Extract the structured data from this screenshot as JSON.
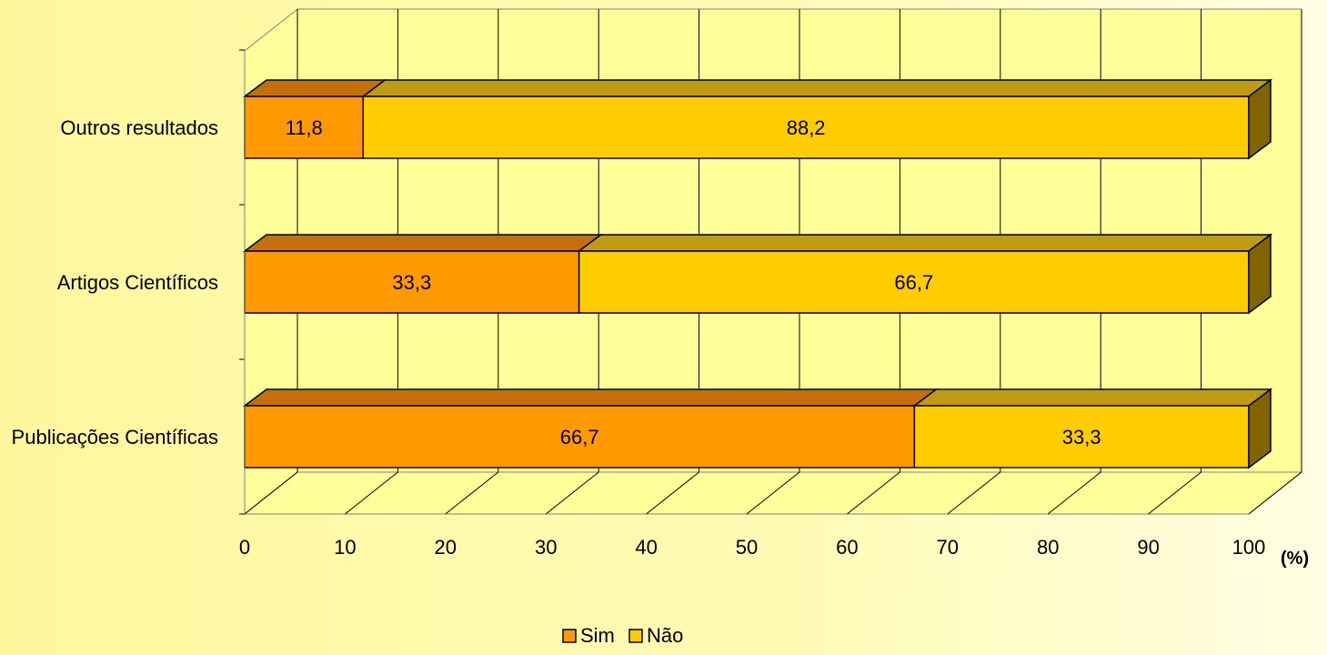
{
  "chart_data": {
    "type": "bar",
    "orientation": "horizontal",
    "stacked": true,
    "three_d": true,
    "categories": [
      "Publicações Científicas",
      "Artigos Científicos",
      "Outros resultados"
    ],
    "series": [
      {
        "name": "Sim",
        "values": [
          66.7,
          33.3,
          11.8
        ],
        "labels": [
          "66,7",
          "33,3",
          "11,8"
        ]
      },
      {
        "name": "Não",
        "values": [
          33.3,
          66.7,
          88.2
        ],
        "labels": [
          "33,3",
          "66,7",
          "88,2"
        ]
      }
    ],
    "x_ticks": [
      "0",
      "10",
      "20",
      "30",
      "40",
      "50",
      "60",
      "70",
      "80",
      "90",
      "100"
    ],
    "xlim": [
      0,
      100
    ],
    "unit_label": "(%)",
    "grid": true,
    "legend_position": "bottom"
  },
  "colors": {
    "sim_front": "#ff9900",
    "sim_top": "#c46f0a",
    "nao_front": "#ffcc00",
    "nao_top": "#bf9b12",
    "nao_side": "#806400",
    "plot_wall": "#ffff99",
    "grid": "#000000"
  }
}
